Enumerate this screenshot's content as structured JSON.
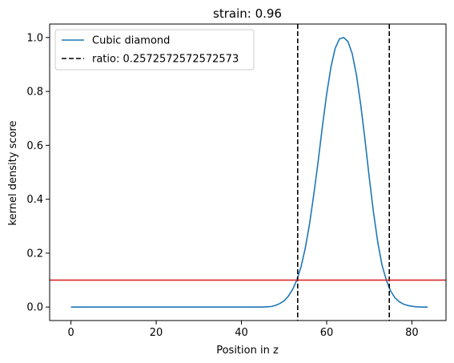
{
  "chart_data": {
    "type": "line",
    "title": "strain: 0.96",
    "xlabel": "Position in z",
    "ylabel": "kernel density score",
    "xlim": [
      -5,
      88
    ],
    "ylim": [
      -0.05,
      1.05
    ],
    "xticks": [
      0,
      20,
      40,
      60,
      80
    ],
    "yticks": [
      0.0,
      0.2,
      0.4,
      0.6,
      0.8,
      1.0
    ],
    "xtick_labels": [
      "0",
      "20",
      "40",
      "60",
      "80"
    ],
    "ytick_labels": [
      "0.0",
      "0.2",
      "0.4",
      "0.6",
      "0.8",
      "1.0"
    ],
    "grid": false,
    "legend_position": "upper-left",
    "series": [
      {
        "name": "Cubic diamond",
        "color": "#1f77b4",
        "style": "solid",
        "x": [
          0,
          5,
          10,
          15,
          20,
          25,
          30,
          35,
          40,
          45,
          46,
          47,
          48,
          49,
          50,
          51,
          52,
          53,
          54,
          55,
          56,
          57,
          58,
          59,
          60,
          61,
          62,
          63,
          64,
          65,
          66,
          67,
          68,
          69,
          70,
          71,
          72,
          73,
          74,
          75,
          76,
          77,
          78,
          79,
          80,
          81,
          82,
          83,
          83.7
        ],
        "y": [
          0,
          0,
          0,
          0,
          0,
          0,
          0,
          0,
          0,
          0,
          0.001,
          0.002,
          0.006,
          0.013,
          0.023,
          0.04,
          0.065,
          0.1,
          0.15,
          0.22,
          0.31,
          0.42,
          0.54,
          0.67,
          0.79,
          0.89,
          0.96,
          0.995,
          1.0,
          0.985,
          0.94,
          0.86,
          0.75,
          0.62,
          0.48,
          0.35,
          0.24,
          0.155,
          0.1,
          0.06,
          0.035,
          0.02,
          0.011,
          0.006,
          0.003,
          0.001,
          0,
          0,
          0
        ]
      }
    ],
    "vlines": [
      {
        "name": "ratio: 0.2572572572572573",
        "x": [
          53.2,
          74.7
        ],
        "color": "#000000",
        "style": "dashed"
      }
    ],
    "hlines": [
      {
        "y": 0.1,
        "color": "#d62728",
        "style": "solid"
      }
    ],
    "legend": [
      {
        "label": "Cubic diamond",
        "style": "solid",
        "color": "#1f77b4"
      },
      {
        "label": "ratio: 0.2572572572572573",
        "style": "dashed",
        "color": "#000000"
      }
    ]
  }
}
